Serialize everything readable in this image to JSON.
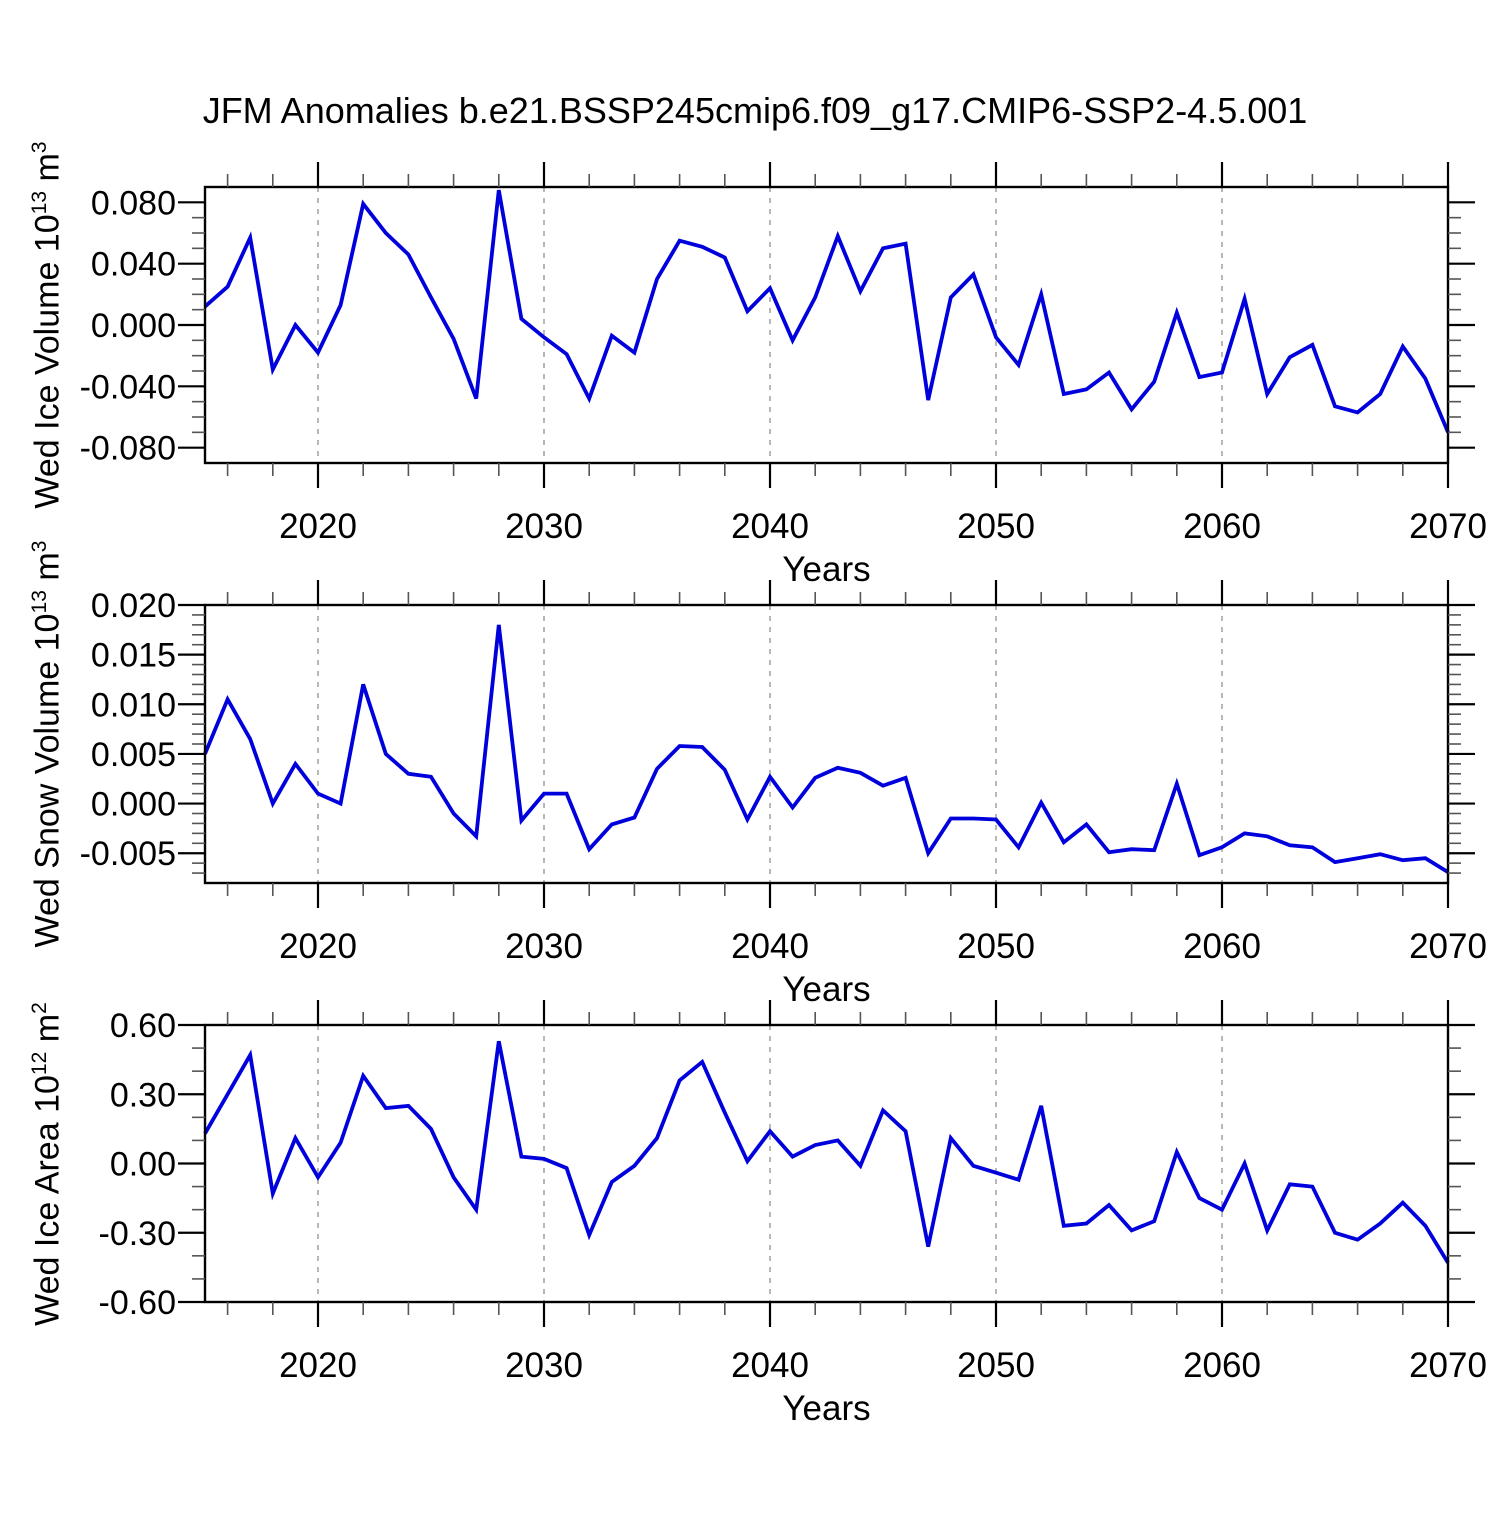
{
  "title": "JFM Anomalies b.e21.BSSP245cmip6.f09_g17.CMIP6-SSP2-4.5.001",
  "x_label": "Years",
  "line_color": "#0000dd",
  "grid_color": "#999999",
  "frame_color": "#000000",
  "minor_tick_color": "#555555",
  "chart_data": {
    "type": "line",
    "title": "JFM Anomalies b.e21.BSSP245cmip6.f09_g17.CMIP6-SSP2-4.5.001",
    "xlabel": "Years",
    "legend": "none",
    "grid": "vertical dashed gridlines at decades 2020-2060",
    "x_range": [
      2015,
      2070
    ],
    "x_major_ticks": [
      2020,
      2030,
      2040,
      2050,
      2060,
      2070
    ],
    "x_major_tick_labels": [
      "2020",
      "2030",
      "2040",
      "2050",
      "2060",
      "2070"
    ],
    "x_minor_step": 2,
    "years": [
      2015,
      2016,
      2017,
      2018,
      2019,
      2020,
      2021,
      2022,
      2023,
      2024,
      2025,
      2026,
      2027,
      2028,
      2029,
      2030,
      2031,
      2032,
      2033,
      2034,
      2035,
      2036,
      2037,
      2038,
      2039,
      2040,
      2041,
      2042,
      2043,
      2044,
      2045,
      2046,
      2047,
      2048,
      2049,
      2050,
      2051,
      2052,
      2053,
      2054,
      2055,
      2056,
      2057,
      2058,
      2059,
      2060,
      2061,
      2062,
      2063,
      2064,
      2065,
      2066,
      2067,
      2068,
      2069,
      2070
    ],
    "panels": [
      {
        "name": "wed-ice-volume",
        "ylabel": "Wed Ice Volume 10^13 m^3",
        "ylabel_parts": [
          {
            "t": "Wed Ice Volume 10"
          },
          {
            "t": "13",
            "sup": true
          },
          {
            "t": " m"
          },
          {
            "t": "3",
            "sup": true
          }
        ],
        "ylim": [
          -0.09,
          0.09
        ],
        "ytick_values": [
          0.08,
          0.04,
          0.0,
          -0.04,
          -0.08
        ],
        "ytick_labels": [
          "0.080",
          "0.040",
          "0.000",
          "-0.040",
          "-0.080"
        ],
        "y_minor_step": 0.01,
        "values": [
          0.012,
          0.025,
          0.057,
          -0.029,
          0.0,
          -0.018,
          0.013,
          0.079,
          0.06,
          0.046,
          0.018,
          -0.009,
          -0.048,
          0.088,
          0.004,
          -0.008,
          -0.019,
          -0.048,
          -0.007,
          -0.018,
          0.03,
          0.055,
          0.051,
          0.044,
          0.009,
          0.024,
          -0.01,
          0.018,
          0.058,
          0.022,
          0.05,
          0.053,
          -0.049,
          0.018,
          0.033,
          -0.008,
          -0.026,
          0.02,
          -0.045,
          -0.042,
          -0.031,
          -0.055,
          -0.037,
          0.008,
          -0.034,
          -0.031,
          0.017,
          -0.045,
          -0.021,
          -0.013,
          -0.053,
          -0.057,
          -0.045,
          -0.014,
          -0.035,
          -0.07
        ]
      },
      {
        "name": "wed-snow-volume",
        "ylabel": "Wed Snow Volume 10^13 m^3",
        "ylabel_parts": [
          {
            "t": "Wed Snow Volume 10"
          },
          {
            "t": "13",
            "sup": true
          },
          {
            "t": " m"
          },
          {
            "t": "3",
            "sup": true
          }
        ],
        "ylim": [
          -0.008,
          0.02
        ],
        "ytick_values": [
          0.02,
          0.015,
          0.01,
          0.005,
          0.0,
          -0.005
        ],
        "ytick_labels": [
          "0.020",
          "0.015",
          "0.010",
          "0.005",
          "0.000",
          "-0.005"
        ],
        "y_minor_step": 0.001,
        "values": [
          0.005,
          0.0105,
          0.0065,
          0.0,
          0.004,
          0.001,
          0.0,
          0.012,
          0.005,
          0.003,
          0.0027,
          -0.001,
          -0.0033,
          0.018,
          -0.0017,
          0.001,
          0.001,
          -0.0046,
          -0.0021,
          -0.0014,
          0.0035,
          0.0058,
          0.0057,
          0.0034,
          -0.0016,
          0.0027,
          -0.0004,
          0.0026,
          0.0036,
          0.0031,
          0.0018,
          0.0026,
          -0.005,
          -0.0015,
          -0.0015,
          -0.0016,
          -0.0044,
          0.0001,
          -0.0039,
          -0.0021,
          -0.0049,
          -0.0046,
          -0.0047,
          0.002,
          -0.0052,
          -0.0044,
          -0.003,
          -0.0033,
          -0.0042,
          -0.0044,
          -0.0059,
          -0.0055,
          -0.0051,
          -0.0057,
          -0.0055,
          -0.0069
        ]
      },
      {
        "name": "wed-ice-area",
        "ylabel": "Wed Ice Area 10^12 m^2",
        "ylabel_parts": [
          {
            "t": "Wed Ice Area 10"
          },
          {
            "t": "12",
            "sup": true
          },
          {
            "t": " m"
          },
          {
            "t": "2",
            "sup": true
          }
        ],
        "ylim": [
          -0.6,
          0.6
        ],
        "ytick_values": [
          0.6,
          0.3,
          0.0,
          -0.3,
          -0.6
        ],
        "ytick_labels": [
          "0.60",
          "0.30",
          "0.00",
          "-0.30",
          "-0.60"
        ],
        "y_minor_step": 0.1,
        "values": [
          0.13,
          0.3,
          0.47,
          -0.13,
          0.11,
          -0.06,
          0.09,
          0.38,
          0.24,
          0.25,
          0.15,
          -0.06,
          -0.2,
          0.53,
          0.03,
          0.02,
          -0.02,
          -0.31,
          -0.08,
          -0.01,
          0.11,
          0.36,
          0.44,
          0.22,
          0.01,
          0.14,
          0.03,
          0.08,
          0.1,
          -0.01,
          0.23,
          0.14,
          -0.36,
          0.11,
          -0.01,
          -0.04,
          -0.07,
          0.25,
          -0.27,
          -0.26,
          -0.18,
          -0.29,
          -0.25,
          0.05,
          -0.15,
          -0.2,
          0.0,
          -0.29,
          -0.09,
          -0.1,
          -0.3,
          -0.33,
          -0.26,
          -0.17,
          -0.27,
          -0.43
        ]
      }
    ]
  }
}
